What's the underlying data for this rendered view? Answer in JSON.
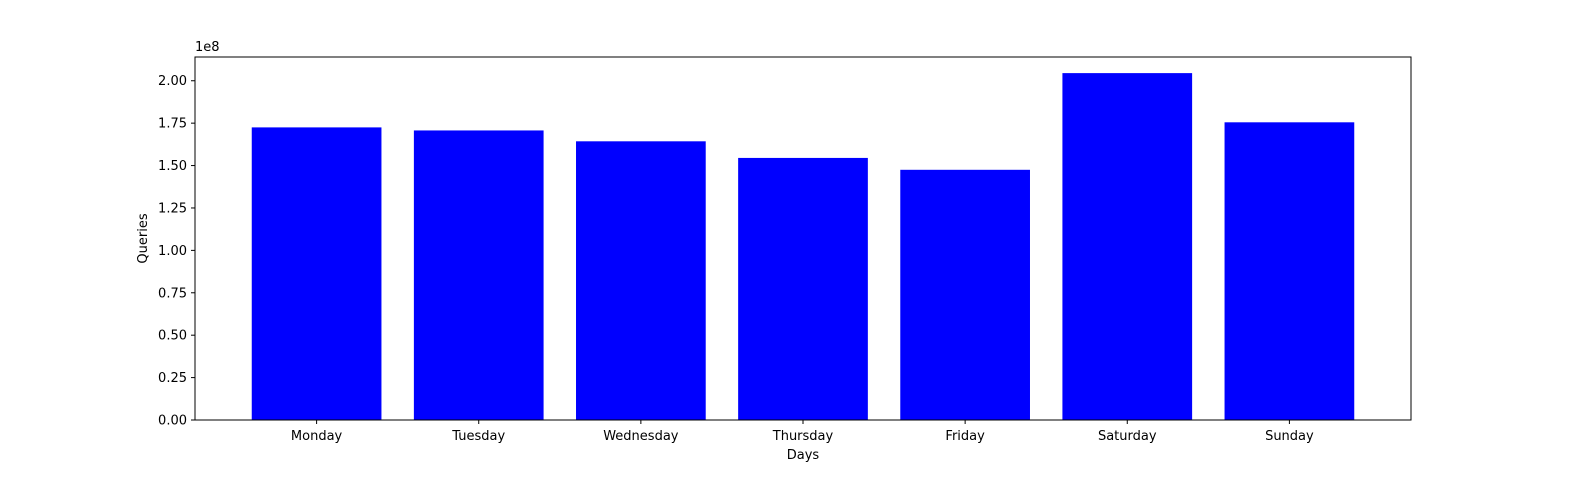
{
  "chart_data": {
    "type": "bar",
    "categories": [
      "Monday",
      "Tuesday",
      "Wednesday",
      "Thursday",
      "Friday",
      "Saturday",
      "Sunday"
    ],
    "values": [
      172500000,
      170700000,
      164300000,
      154500000,
      147500000,
      204500000,
      175500000
    ],
    "title": "",
    "xlabel": "Days",
    "ylabel": "Queries",
    "ylim": [
      0,
      214000000
    ],
    "yticks": [
      0,
      25000000,
      50000000,
      75000000,
      100000000,
      125000000,
      150000000,
      175000000,
      200000000
    ],
    "ytick_labels": [
      "0.00",
      "0.25",
      "0.50",
      "0.75",
      "1.00",
      "1.25",
      "1.50",
      "1.75",
      "2.00"
    ],
    "y_offset_label": "1e8",
    "bar_color": "#0000ff",
    "grid": false,
    "legend": "none"
  }
}
